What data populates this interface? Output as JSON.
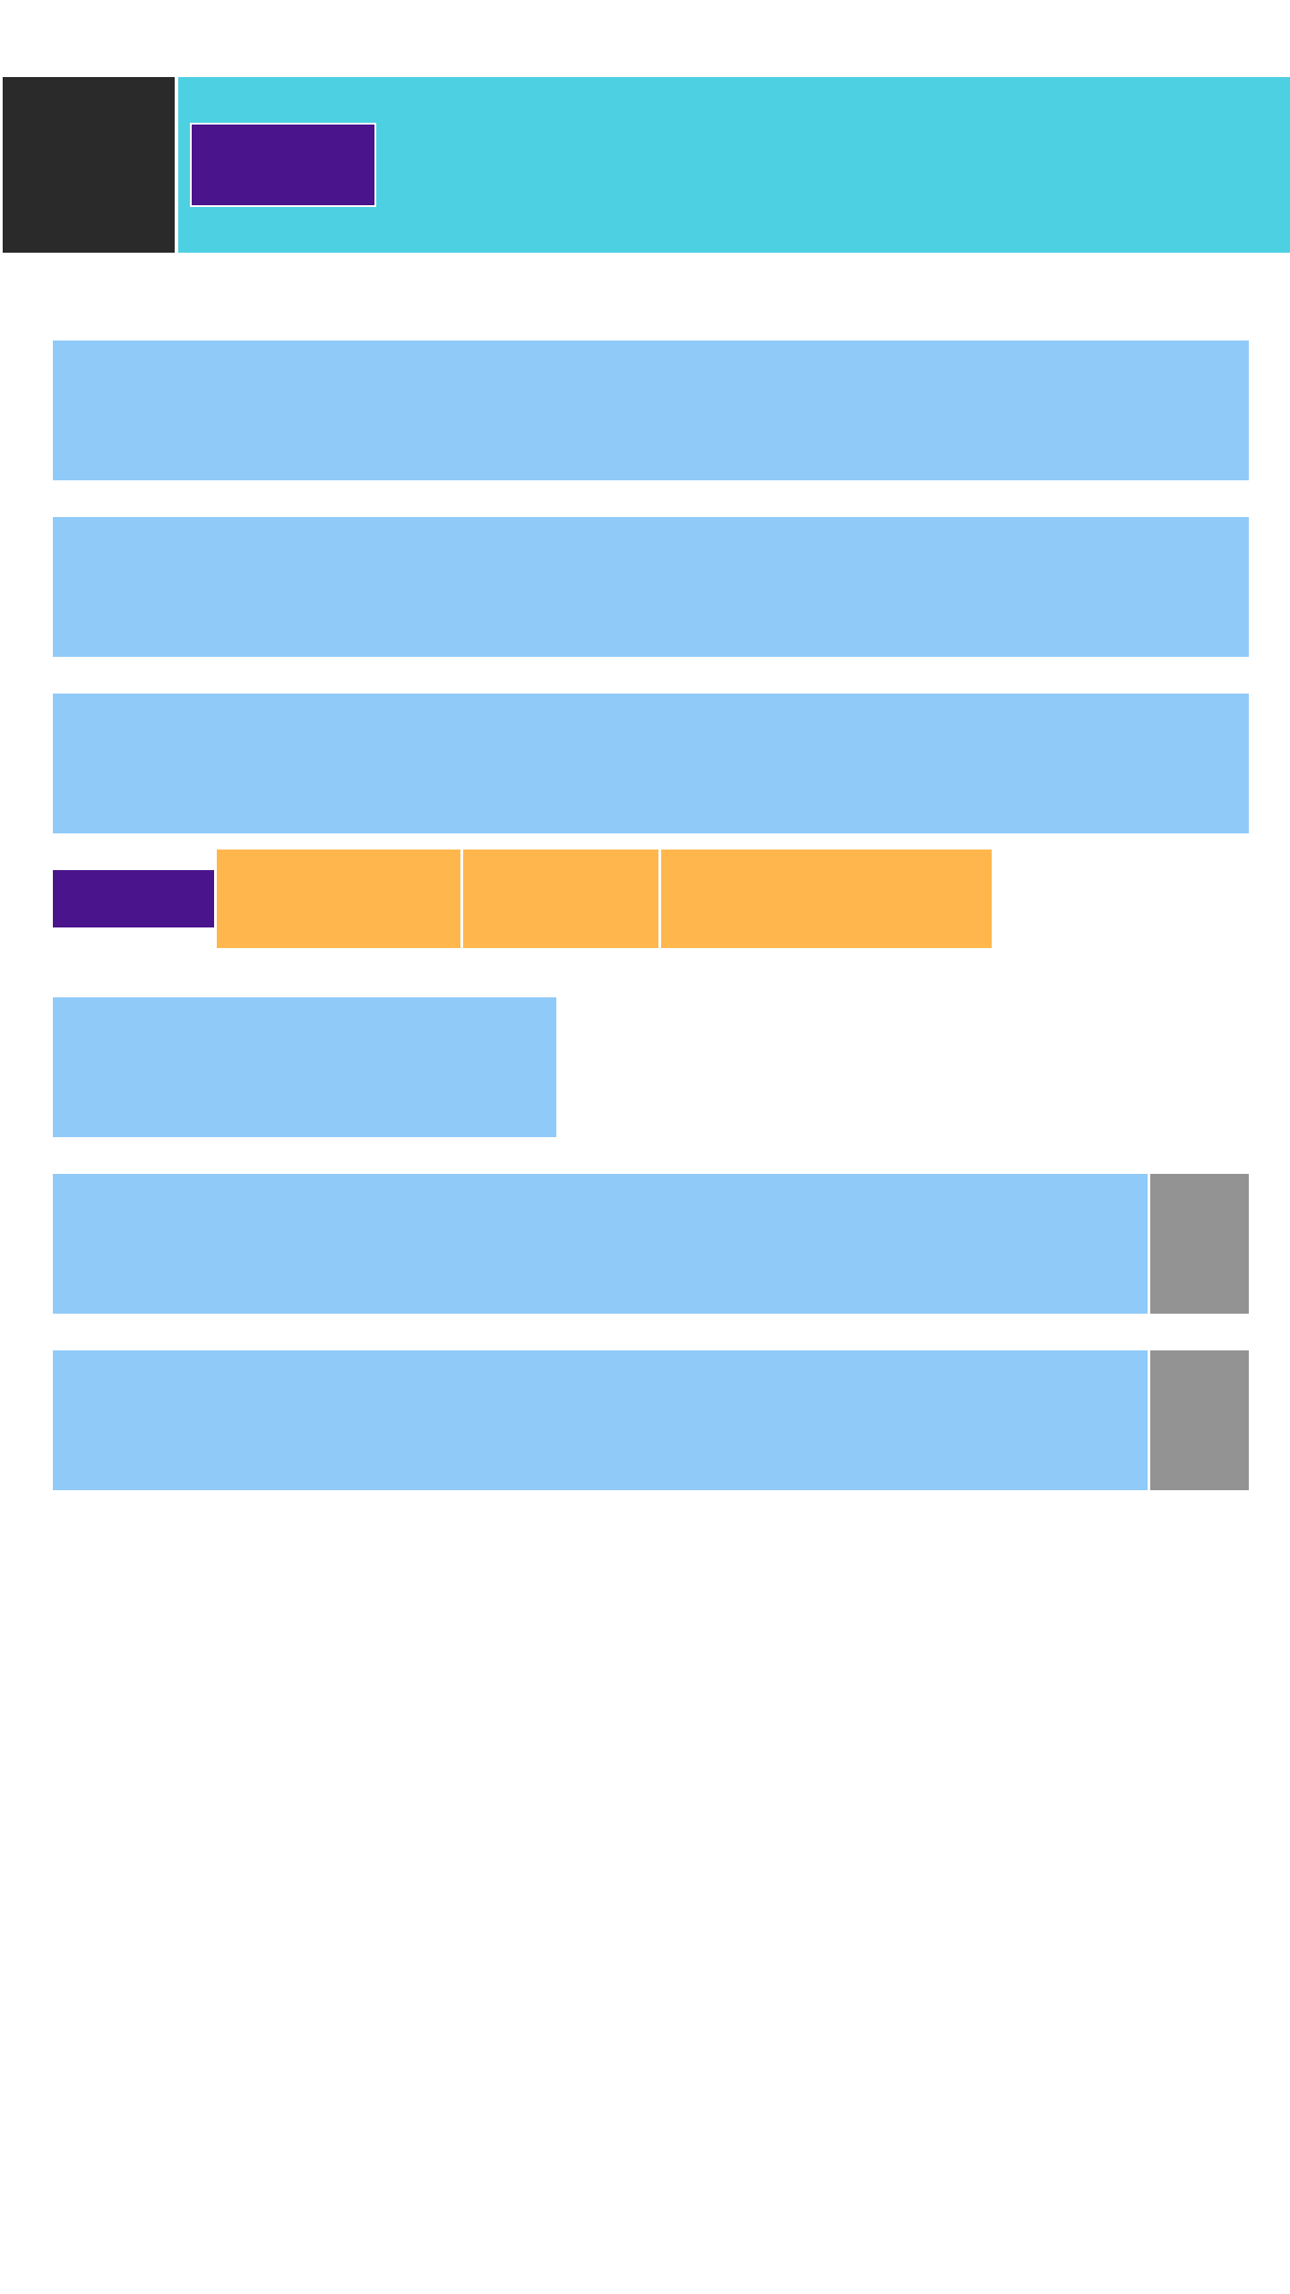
{
  "colors": {
    "background": "#ffffff",
    "header_dark": "#2a2a2a",
    "header_accent": "#4dd0e1",
    "primary_purple": "#4a148c",
    "panel_blue": "#90caf9",
    "segment_orange": "#ffb74d",
    "side_gray": "#939393"
  },
  "header": {
    "logo_panel": "",
    "title_bar": "",
    "button_label": ""
  },
  "content": {
    "panels": [
      "",
      "",
      "",
      "",
      "",
      ""
    ],
    "action_button_label": "",
    "segments": [
      "",
      "",
      ""
    ],
    "side_buttons": [
      "",
      ""
    ]
  }
}
